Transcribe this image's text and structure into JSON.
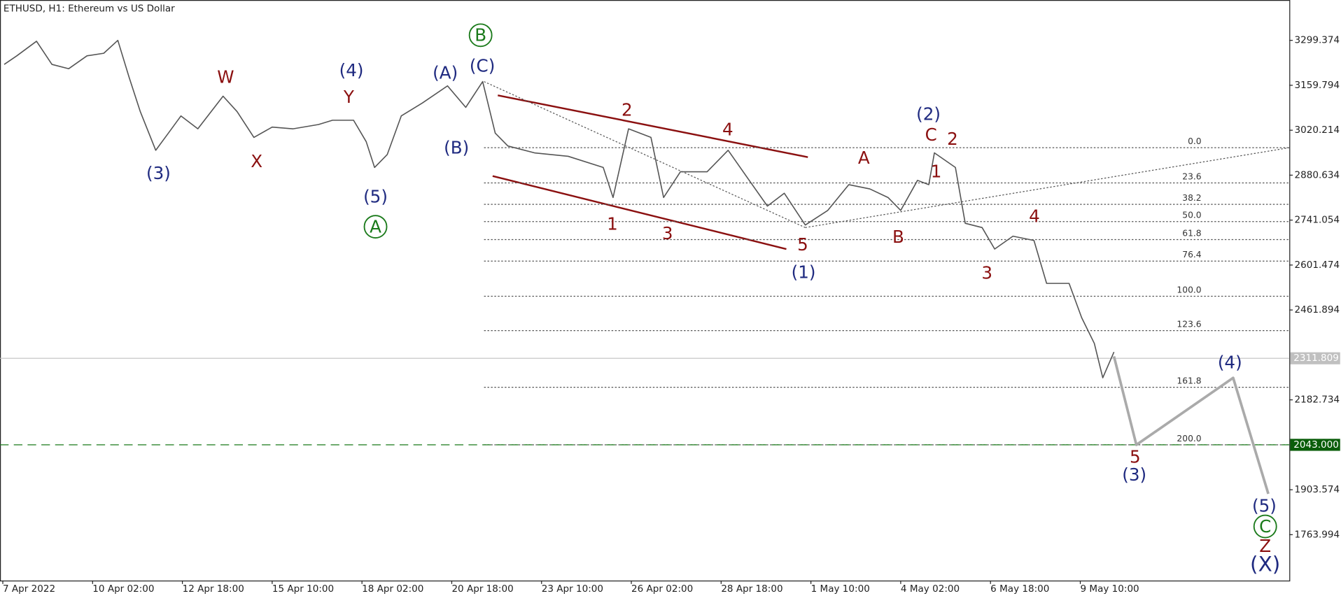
{
  "chart_data": {
    "type": "line",
    "title": "ETHUSD, H1:  Ethereum vs US Dollar",
    "series": [
      {
        "color": "#555555",
        "x": [
          11,
          20,
          34,
          45,
          57,
          70,
          82,
          92,
          100,
          108,
          119,
          128,
          137,
          149,
          167,
          177,
          189,
          202,
          217,
          235,
          245,
          260,
          269,
          275,
          284,
          294,
          309,
          327,
          340,
          352,
          361,
          370,
          389,
          413,
          438,
          445,
          456,
          472,
          481,
          493,
          512,
          527,
          542,
          555,
          567,
          582,
          598,
          613,
          628,
          641,
          650,
          662,
          670,
          674,
          689,
          696,
          708,
          717,
          730,
          745,
          754,
          770,
          779,
          788,
          794,
          802
        ],
        "values": [
          3224.6,
          3251.3,
          3296.7,
          3224.6,
          3211.3,
          3251.3,
          3259.3,
          3299.3,
          3184.6,
          3077.9,
          2957.9,
          3011.3,
          3064.6,
          3024.6,
          3125.9,
          3077.9,
          2997.9,
          3029.9,
          3024.6,
          3037.9,
          3051.3,
          3051.3,
          2984.6,
          2904.6,
          2944.6,
          3064.6,
          3104.6,
          3158.0,
          3091.3,
          3171.3,
          3011.3,
          2971.2,
          2949.9,
          2939.2,
          2904.6,
          2811.2,
          3024.6,
          2997.9,
          2811.2,
          2891.2,
          2891.2,
          2957.9,
          2864.5,
          2784.5,
          2824.5,
          2725.9,
          2771.2,
          2851.2,
          2837.9,
          2811.2,
          2771.2,
          2864.5,
          2851.2,
          2949.9,
          2904.6,
          2731.2,
          2717.9,
          2651.2,
          2691.2,
          2677.9,
          2544.5,
          2544.5,
          2437.9,
          2357.9,
          2251.3,
          2331.3
        ]
      },
      {
        "color": "#aaaaaa",
        "x": [
          802,
          818,
          887,
          912
        ],
        "values": [
          2317.7,
          2043.0,
          2251.0,
          1891.0
        ]
      }
    ],
    "xlim": [
      8,
      927
    ],
    "xticks": [
      {
        "value": 10,
        "label": "7 Apr 2022"
      },
      {
        "value": 74,
        "label": "10 Apr 02:00"
      },
      {
        "value": 138,
        "label": "12 Apr 18:00"
      },
      {
        "value": 202,
        "label": "15 Apr 10:00"
      },
      {
        "value": 266,
        "label": "18 Apr 02:00"
      },
      {
        "value": 330,
        "label": "20 Apr 18:00"
      },
      {
        "value": 394,
        "label": "23 Apr 10:00"
      },
      {
        "value": 458,
        "label": "26 Apr 02:00"
      },
      {
        "value": 522,
        "label": "28 Apr 18:00"
      },
      {
        "value": 586,
        "label": "1 May 10:00"
      },
      {
        "value": 650,
        "label": "4 May 02:00"
      },
      {
        "value": 714,
        "label": "6 May 18:00"
      },
      {
        "value": 778,
        "label": "9 May 10:00"
      }
    ],
    "ylim": [
      1621.5,
      3424.7
    ],
    "yticks": [
      3299.374,
      3159.794,
      3020.214,
      2880.634,
      2741.054,
      2601.474,
      2461.894,
      2182.734,
      1903.574,
      1763.994
    ],
    "price_line": 2311.809,
    "level_line": {
      "value": 2043,
      "label": "2043.000"
    },
    "fib_levels": [
      {
        "label": "0.0",
        "value": 2965.9
      },
      {
        "label": "23.6",
        "value": 2856.5
      },
      {
        "label": "38.2",
        "value": 2789.9
      },
      {
        "label": "50.0",
        "value": 2736.5
      },
      {
        "label": "61.8",
        "value": 2680.5
      },
      {
        "label": "76.4",
        "value": 2613.8
      },
      {
        "label": "100.0",
        "value": 2504.5
      },
      {
        "label": "123.6",
        "value": 2397.8
      },
      {
        "label": "161.8",
        "value": 2221.7
      },
      {
        "label": "200.0",
        "value": 2043.0
      }
    ],
    "annotations": [
      {
        "text": "(3)",
        "color": "#1f2a80"
      },
      {
        "text": "W",
        "color": "#8b1010"
      },
      {
        "text": "X",
        "color": "#8b1010"
      },
      {
        "text": "(4)",
        "color": "#1f2a80"
      },
      {
        "text": "Y",
        "color": "#8b1010"
      },
      {
        "text": "(5)",
        "color": "#1f2a80"
      },
      {
        "text": "A",
        "color": "#1a7a1a",
        "circled": true
      },
      {
        "text": "(A)",
        "color": "#1f2a80"
      },
      {
        "text": "(B)",
        "color": "#1f2a80"
      },
      {
        "text": "(C)",
        "color": "#1f2a80"
      },
      {
        "text": "B",
        "color": "#1a7a1a",
        "circled": true
      },
      {
        "text": "2",
        "color": "#8b1010"
      },
      {
        "text": "4",
        "color": "#8b1010"
      },
      {
        "text": "1",
        "color": "#8b1010"
      },
      {
        "text": "3",
        "color": "#8b1010"
      },
      {
        "text": "5",
        "color": "#8b1010"
      },
      {
        "text": "(1)",
        "color": "#1f2a80"
      },
      {
        "text": "A",
        "color": "#8b1010"
      },
      {
        "text": "B",
        "color": "#8b1010"
      },
      {
        "text": "(2)",
        "color": "#1f2a80"
      },
      {
        "text": "C",
        "color": "#8b1010"
      },
      {
        "text": "2",
        "color": "#8b1010"
      },
      {
        "text": "1",
        "color": "#8b1010"
      },
      {
        "text": "4",
        "color": "#8b1010"
      },
      {
        "text": "3",
        "color": "#8b1010"
      },
      {
        "text": "5",
        "color": "#8b1010"
      },
      {
        "text": "(3)",
        "color": "#1f2a80"
      },
      {
        "text": "(4)",
        "color": "#1f2a80"
      },
      {
        "text": "(5)",
        "color": "#1f2a80"
      },
      {
        "text": "C",
        "color": "#1a7a1a",
        "circled": true
      },
      {
        "text": "Z",
        "color": "#8b1010"
      },
      {
        "text": "(X)",
        "color": "#1f2a80"
      }
    ]
  }
}
